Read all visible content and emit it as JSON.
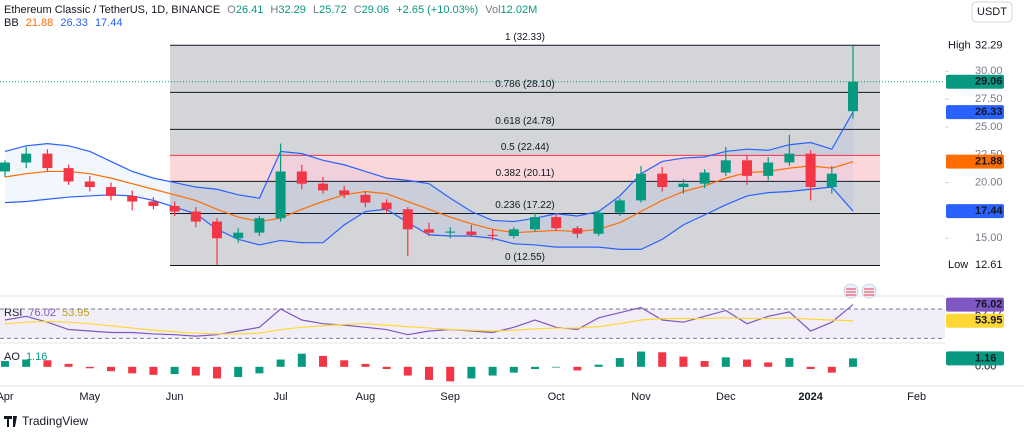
{
  "header": {
    "symbol": "Ethereum Classic / TetherUS, 1D, BINANCE",
    "ohlc_labels": [
      "O",
      "H",
      "L",
      "C"
    ],
    "change": "+2.65 (+10.03%)",
    "volume_label": "Vol",
    "volume": "12.02M",
    "currency": "USDT",
    "brand": "TradingView"
  },
  "chart_data": {
    "type": "candlestick",
    "categories": [
      "Apr",
      null,
      null,
      null,
      "May",
      null,
      null,
      null,
      "Jun",
      null,
      null,
      null,
      null,
      "Jul",
      null,
      null,
      null,
      "Aug",
      null,
      null,
      null,
      "Sep",
      null,
      null,
      null,
      null,
      "Oct",
      null,
      null,
      null,
      "Nov",
      null,
      null,
      null,
      "Dec",
      null,
      null,
      null,
      "2024",
      null,
      null,
      null,
      null,
      "Feb"
    ],
    "open": [
      21.0,
      21.8,
      22.6,
      21.3,
      20.1,
      19.6,
      18.8,
      18.3,
      17.9,
      17.4,
      16.5,
      15.0,
      15.5,
      16.8,
      21.0,
      19.9,
      19.3,
      18.9,
      18.2,
      17.6,
      15.8,
      15.5,
      15.6,
      15.3,
      15.2,
      15.8,
      16.9,
      15.9,
      15.4,
      17.3,
      18.4,
      20.8,
      19.6,
      19.9,
      20.9,
      22.0,
      20.6,
      21.8,
      22.6,
      19.6,
      26.41,
      null,
      null,
      null
    ],
    "high": [
      22.0,
      23.2,
      23.0,
      21.6,
      20.6,
      20.0,
      19.3,
      18.7,
      18.3,
      17.8,
      16.8,
      15.9,
      17.0,
      23.5,
      21.6,
      20.5,
      19.7,
      19.2,
      18.5,
      17.8,
      16.4,
      16.0,
      16.2,
      15.8,
      16.0,
      17.3,
      17.2,
      16.1,
      17.5,
      18.6,
      21.5,
      21.4,
      20.3,
      21.2,
      23.2,
      22.5,
      22.3,
      24.3,
      22.9,
      21.5,
      32.29,
      null,
      null,
      null
    ],
    "low": [
      20.5,
      21.3,
      21.0,
      19.8,
      19.2,
      18.4,
      17.5,
      17.6,
      17.0,
      16.0,
      12.61,
      14.6,
      15.2,
      16.5,
      19.4,
      19.0,
      18.6,
      17.8,
      17.3,
      13.4,
      15.2,
      15.0,
      15.1,
      14.8,
      15.0,
      15.6,
      15.7,
      15.0,
      15.2,
      17.0,
      18.2,
      19.2,
      19.0,
      19.5,
      20.6,
      19.8,
      20.2,
      21.5,
      18.4,
      19.0,
      25.72,
      null,
      null,
      null
    ],
    "close": [
      21.8,
      22.6,
      21.3,
      20.1,
      19.6,
      18.8,
      18.3,
      17.9,
      17.4,
      16.5,
      15.0,
      15.5,
      16.8,
      21.0,
      19.9,
      19.3,
      18.9,
      18.2,
      17.6,
      15.8,
      15.5,
      15.6,
      15.3,
      15.2,
      15.8,
      16.9,
      15.9,
      15.4,
      17.3,
      18.4,
      20.8,
      19.6,
      19.9,
      20.9,
      22.0,
      20.6,
      21.8,
      22.6,
      19.6,
      20.8,
      29.06,
      null,
      null,
      null
    ],
    "up_color": "#089981",
    "down_color": "#f23645",
    "ylim": [
      10.8,
      36.4
    ],
    "yticks": [
      {
        "value": 15,
        "label": "15.00"
      },
      {
        "value": 20,
        "label": "20.00"
      },
      {
        "value": 22.5,
        "label": "22.50"
      },
      {
        "value": 25,
        "label": "25.00"
      },
      {
        "value": 27.5,
        "label": "27.50"
      },
      {
        "value": 30,
        "label": "30.00"
      }
    ],
    "high_label": "High",
    "low_label": "Low",
    "bollinger": {
      "name": "BB",
      "basis_color": "#ff6d00",
      "band_color": "#2962ff",
      "basis": [
        20.5,
        20.8,
        21.0,
        21.0,
        20.8,
        20.4,
        19.9,
        19.4,
        18.9,
        18.4,
        17.6,
        16.9,
        16.5,
        16.8,
        17.6,
        18.3,
        18.9,
        19.2,
        19.0,
        18.3,
        17.6,
        16.9,
        16.3,
        15.8,
        15.5,
        15.6,
        15.7,
        15.6,
        15.8,
        16.4,
        17.4,
        18.4,
        19.2,
        19.7,
        20.4,
        20.9,
        21.0,
        21.3,
        21.5,
        21.3,
        21.88,
        null,
        null,
        null
      ],
      "upper": [
        22.8,
        23.3,
        23.5,
        23.3,
        22.8,
        21.9,
        21.0,
        20.4,
        20.0,
        19.6,
        19.4,
        18.9,
        18.6,
        22.8,
        22.6,
        22.0,
        21.6,
        21.0,
        20.4,
        20.2,
        19.9,
        18.6,
        17.4,
        16.6,
        16.5,
        16.8,
        17.2,
        17.0,
        17.4,
        18.8,
        20.8,
        21.9,
        22.2,
        22.3,
        22.8,
        23.0,
        22.9,
        23.4,
        23.6,
        23.0,
        26.33,
        null,
        null,
        null
      ],
      "lower": [
        18.2,
        18.3,
        18.5,
        18.7,
        18.8,
        18.9,
        18.8,
        18.4,
        17.8,
        17.2,
        15.8,
        14.9,
        14.4,
        14.8,
        14.6,
        14.6,
        16.2,
        17.4,
        17.6,
        16.4,
        15.3,
        15.2,
        15.2,
        15.0,
        14.5,
        14.4,
        14.2,
        14.2,
        14.2,
        14.0,
        14.0,
        14.9,
        16.2,
        17.1,
        18.0,
        18.8,
        19.1,
        19.2,
        19.4,
        19.6,
        17.44,
        null,
        null,
        null
      ]
    },
    "fibonacci": [
      {
        "price": 32.33,
        "label": "1 (32.33)"
      },
      {
        "price": 28.1,
        "label": "0.786 (28.10)"
      },
      {
        "price": 24.78,
        "label": "0.618 (24.78)"
      },
      {
        "price": 22.44,
        "label": "0.5 (22.44)",
        "color": "#f23645"
      },
      {
        "price": 20.11,
        "label": "0.382 (20.11)"
      },
      {
        "price": 17.22,
        "label": "0.236 (17.22)"
      },
      {
        "price": 12.55,
        "label": "0 (12.55)"
      }
    ],
    "rsi": {
      "name": "RSI",
      "color": "#7e57c2",
      "ma_color": "#fdd835",
      "values": [
        55,
        60,
        52,
        42,
        40,
        38,
        38,
        36,
        35,
        33,
        35,
        40,
        45,
        70,
        55,
        50,
        48,
        45,
        42,
        35,
        40,
        42,
        40,
        38,
        45,
        55,
        45,
        42,
        58,
        65,
        72,
        55,
        52,
        60,
        68,
        50,
        60,
        66,
        40,
        52,
        76.02,
        null,
        null,
        null
      ],
      "ma": [
        50,
        52,
        53,
        52,
        50,
        47,
        44,
        41,
        39,
        37,
        36,
        36,
        37,
        42,
        45,
        47,
        49,
        50,
        48,
        46,
        44,
        42,
        41,
        40,
        41,
        43,
        44,
        44,
        46,
        50,
        55,
        57,
        57,
        57,
        58,
        57,
        57,
        58,
        56,
        55,
        53.95,
        null,
        null,
        null
      ],
      "ylim": [
        25,
        85
      ],
      "bands": [
        70,
        30
      ],
      "ticks": [
        62.77
      ]
    },
    "ao": {
      "name": "AO",
      "values": [
        0.8,
        1.0,
        0.9,
        0.4,
        -0.2,
        -0.6,
        -0.9,
        -1.1,
        -1.0,
        -1.2,
        -1.6,
        -1.4,
        -0.9,
        1.0,
        1.8,
        1.5,
        0.9,
        0.4,
        -0.3,
        -1.2,
        -1.8,
        -2.0,
        -1.6,
        -1.2,
        -0.8,
        -0.3,
        -0.1,
        -0.5,
        0.3,
        1.2,
        2.1,
        2.0,
        1.4,
        0.8,
        1.3,
        1.0,
        0.6,
        1.2,
        -0.3,
        -0.8,
        1.16,
        null,
        null,
        null
      ],
      "ylim": [
        -2.5,
        3
      ],
      "ticks": [
        {
          "value": 0,
          "label": "0.00"
        }
      ]
    }
  }
}
